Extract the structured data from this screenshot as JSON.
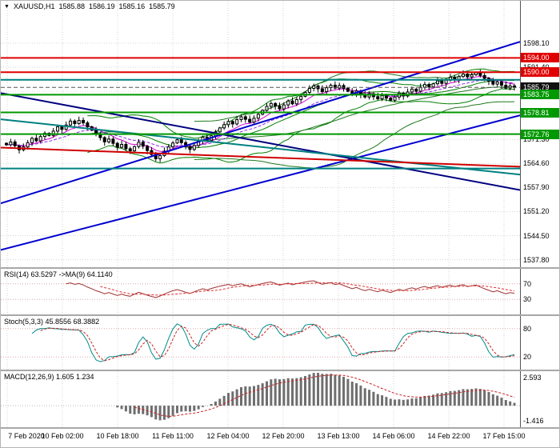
{
  "header": {
    "symbol": "XAUUSD,H1",
    "open": "1585.88",
    "high": "1586.19",
    "low": "1585.16",
    "close": "1585.79"
  },
  "panels": {
    "rsi": {
      "label": "RSI(14) 63.5297  ->MA(9) 64.1140",
      "level_labels": [
        "70",
        "30"
      ]
    },
    "stoch": {
      "label": "Stoch(5,3,3) 45.8556 68.3882",
      "level_labels": [
        "80",
        "20"
      ]
    },
    "macd": {
      "label": "MACD(12,26,9) 1.605 1.234",
      "level_labels": [
        "2.593",
        "-1.416"
      ]
    }
  },
  "colors": {
    "resistance_red": "#e00000",
    "support_green": "#009900",
    "current_price_black": "#111111",
    "trend_blue": "#0000d0",
    "trend_navy": "#000080",
    "trend_teal": "#008080",
    "band_green": "#008000",
    "ema_magenta": "#d400d4",
    "rsi_line": "#a03030",
    "stoch_k": "#008b8b",
    "signal_red": "#cc2020",
    "histogram_gray": "#6e6e6e"
  },
  "chart_data": {
    "type": "candlestick",
    "symbol": "XAUUSD",
    "timeframe": "H1",
    "title": "XAUUSD,H1 1585.88 1586.19 1585.16 1585.79",
    "last_bar": {
      "open": 1585.88,
      "high": 1586.19,
      "low": 1585.16,
      "close": 1585.79
    },
    "x_labels": [
      "7 Feb 2020",
      "10 Feb 02:00",
      "10 Feb 18:00",
      "11 Feb 11:00",
      "12 Feb 04:00",
      "12 Feb 20:00",
      "13 Feb 13:00",
      "14 Feb 06:00",
      "14 Feb 22:00",
      "17 Feb 15:00"
    ],
    "y_axis": {
      "top": 1609.9,
      "bottom": 1535.7,
      "grid_labels": [
        1598.1,
        1591.4,
        1584.7,
        1578.0,
        1571.3,
        1564.6,
        1557.9,
        1551.2,
        1544.5,
        1537.8
      ]
    },
    "closes": [
      1569.8,
      1570.6,
      1569.5,
      1568.4,
      1569.2,
      1570.4,
      1571.6,
      1570.9,
      1572.1,
      1573.0,
      1572.4,
      1573.6,
      1574.8,
      1574.1,
      1575.3,
      1576.4,
      1575.7,
      1576.6,
      1575.9,
      1574.8,
      1573.9,
      1572.7,
      1571.8,
      1570.6,
      1571.4,
      1570.2,
      1569.1,
      1569.9,
      1568.7,
      1568.1,
      1569.3,
      1570.5,
      1569.4,
      1568.2,
      1567.1,
      1565.9,
      1566.8,
      1568.0,
      1569.2,
      1570.3,
      1571.2,
      1570.4,
      1569.3,
      1568.5,
      1569.6,
      1570.8,
      1571.9,
      1571.1,
      1572.3,
      1573.4,
      1574.5,
      1575.4,
      1576.3,
      1575.6,
      1576.8,
      1577.6,
      1576.9,
      1576.1,
      1577.2,
      1578.3,
      1579.4,
      1580.5,
      1581.3,
      1580.6,
      1579.8,
      1580.9,
      1582.0,
      1581.2,
      1582.4,
      1583.3,
      1584.4,
      1585.5,
      1586.2,
      1585.4,
      1584.6,
      1585.7,
      1586.4,
      1585.6,
      1586.3,
      1585.5,
      1584.7,
      1583.9,
      1584.8,
      1583.8,
      1583.1,
      1584.0,
      1583.2,
      1582.6,
      1583.5,
      1582.8,
      1582.2,
      1583.1,
      1584.2,
      1583.4,
      1584.5,
      1585.3,
      1584.7,
      1585.8,
      1586.6,
      1585.9,
      1586.8,
      1587.6,
      1586.9,
      1587.8,
      1588.6,
      1587.9,
      1588.8,
      1589.5,
      1588.7,
      1589.3,
      1589.9,
      1589.1,
      1588.3,
      1587.5,
      1586.7,
      1587.3,
      1586.4,
      1585.6,
      1586.2,
      1585.79
    ],
    "price_lines": [
      {
        "price": 1594.0,
        "color": "#e00000",
        "width": 2,
        "style": "solid",
        "badge": true
      },
      {
        "price": 1590.0,
        "color": "#e00000",
        "width": 2,
        "style": "solid",
        "badge": true
      },
      {
        "price": 1585.79,
        "color": "#555555",
        "width": 1,
        "style": "dash",
        "badge": true,
        "badge_color": "#111111"
      },
      {
        "price": 1583.75,
        "color": "#009900",
        "width": 2,
        "style": "solid",
        "badge": true
      },
      {
        "price": 1578.81,
        "color": "#009900",
        "width": 2,
        "style": "solid",
        "badge": true
      },
      {
        "price": 1572.76,
        "color": "#009900",
        "width": 2,
        "style": "solid",
        "badge": true
      },
      {
        "price": 1587.9,
        "color": "#008080",
        "width": 2,
        "style": "solid",
        "badge": false
      },
      {
        "price": 1563.2,
        "color": "#008080",
        "width": 2,
        "style": "solid",
        "badge": false
      }
    ],
    "trend_lines": [
      {
        "from": {
          "t": 0,
          "price": 1553.5
        },
        "to": {
          "t": 1,
          "price": 1598.5
        },
        "color": "#0000d0",
        "width": 2
      },
      {
        "from": {
          "t": 0,
          "price": 1540.5
        },
        "to": {
          "t": 1,
          "price": 1578.0
        },
        "color": "#0000d0",
        "width": 2
      },
      {
        "from": {
          "t": 0,
          "price": 1584.2
        },
        "to": {
          "t": 1,
          "price": 1557.2
        },
        "color": "#000080",
        "width": 2
      },
      {
        "from": {
          "t": 0,
          "price": 1576.9
        },
        "to": {
          "t": 1,
          "price": 1561.5
        },
        "color": "#008080",
        "width": 2
      },
      {
        "from": {
          "t": 0,
          "price": 1569.0
        },
        "to": {
          "t": 1,
          "price": 1563.7
        },
        "color": "#d00000",
        "width": 2
      }
    ],
    "indicators": {
      "bollinger": {
        "period": 20,
        "deviation": 2,
        "color": "#008000"
      },
      "bollinger_wide": {
        "period": 45,
        "deviation": 2,
        "color": "#1f7a1f"
      },
      "ma_fast": {
        "period": 8,
        "color": "#d400d4"
      },
      "ma_slow": {
        "period": 17,
        "color": "#8a2be2"
      },
      "rsi": {
        "period": 14,
        "value": 63.5297,
        "ma_period": 9,
        "ma_value": 64.114,
        "levels": [
          70,
          30
        ]
      },
      "stochastic": {
        "k": 5,
        "d": 3,
        "slowing": 3,
        "main": 45.8556,
        "signal": 68.3882,
        "levels": [
          80,
          20
        ]
      },
      "macd": {
        "fast": 12,
        "slow": 26,
        "signal": 9,
        "main": 1.605,
        "signal_value": 1.234,
        "scale_labels": [
          2.593,
          -1.416
        ]
      }
    }
  }
}
